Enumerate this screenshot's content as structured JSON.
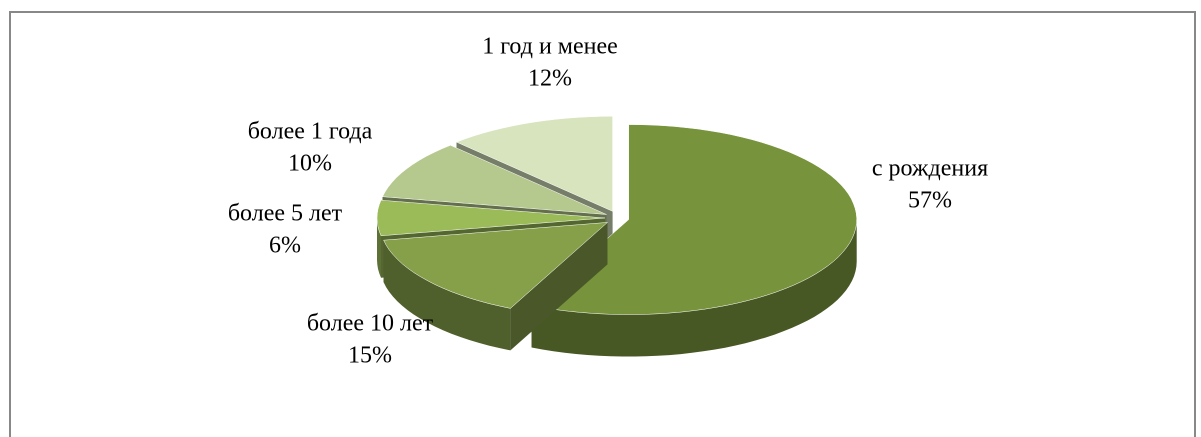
{
  "chart_data": {
    "type": "pie",
    "categories": [
      "с рождения",
      "более 10 лет",
      "более 5 лет",
      "более 1 года",
      "1 год и менее"
    ],
    "values": [
      57,
      15,
      6,
      10,
      12
    ],
    "value_labels": [
      "57%",
      "15%",
      "6%",
      "10%",
      "12%"
    ],
    "colors": [
      "#77933c",
      "#86a04a",
      "#9bbb59",
      "#b5c98e",
      "#d7e4bd"
    ]
  }
}
